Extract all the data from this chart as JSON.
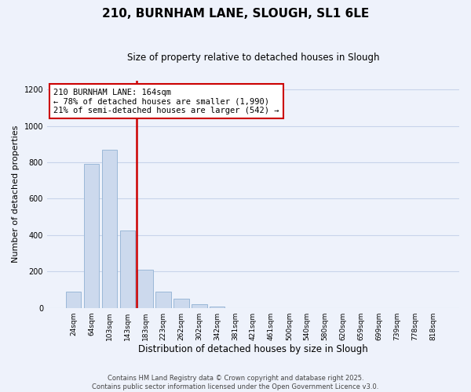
{
  "title": "210, BURNHAM LANE, SLOUGH, SL1 6LE",
  "subtitle": "Size of property relative to detached houses in Slough",
  "xlabel": "Distribution of detached houses by size in Slough",
  "ylabel": "Number of detached properties",
  "categories": [
    "24sqm",
    "64sqm",
    "103sqm",
    "143sqm",
    "183sqm",
    "223sqm",
    "262sqm",
    "302sqm",
    "342sqm",
    "381sqm",
    "421sqm",
    "461sqm",
    "500sqm",
    "540sqm",
    "580sqm",
    "620sqm",
    "659sqm",
    "699sqm",
    "739sqm",
    "778sqm",
    "818sqm"
  ],
  "values": [
    90,
    790,
    870,
    425,
    210,
    88,
    50,
    22,
    8,
    0,
    0,
    0,
    0,
    0,
    0,
    0,
    0,
    0,
    0,
    0,
    0
  ],
  "bar_color": "#ccd9ed",
  "bar_edge_color": "#9ab8d8",
  "vline_x": 3.5,
  "vline_color": "#cc0000",
  "annotation_title": "210 BURNHAM LANE: 164sqm",
  "annotation_line1": "← 78% of detached houses are smaller (1,990)",
  "annotation_line2": "21% of semi-detached houses are larger (542) →",
  "annotation_box_color": "#ffffff",
  "annotation_box_edge": "#cc0000",
  "ylim": [
    0,
    1250
  ],
  "yticks": [
    0,
    200,
    400,
    600,
    800,
    1000,
    1200
  ],
  "footer1": "Contains HM Land Registry data © Crown copyright and database right 2025.",
  "footer2": "Contains public sector information licensed under the Open Government Licence v3.0.",
  "background_color": "#eef2fb",
  "grid_color": "#c8d4ea",
  "title_fontsize": 11,
  "subtitle_fontsize": 8.5,
  "ylabel_fontsize": 8,
  "xlabel_fontsize": 8.5,
  "tick_fontsize": 6.5,
  "ann_fontsize": 7.5,
  "footer_fontsize": 6.0
}
